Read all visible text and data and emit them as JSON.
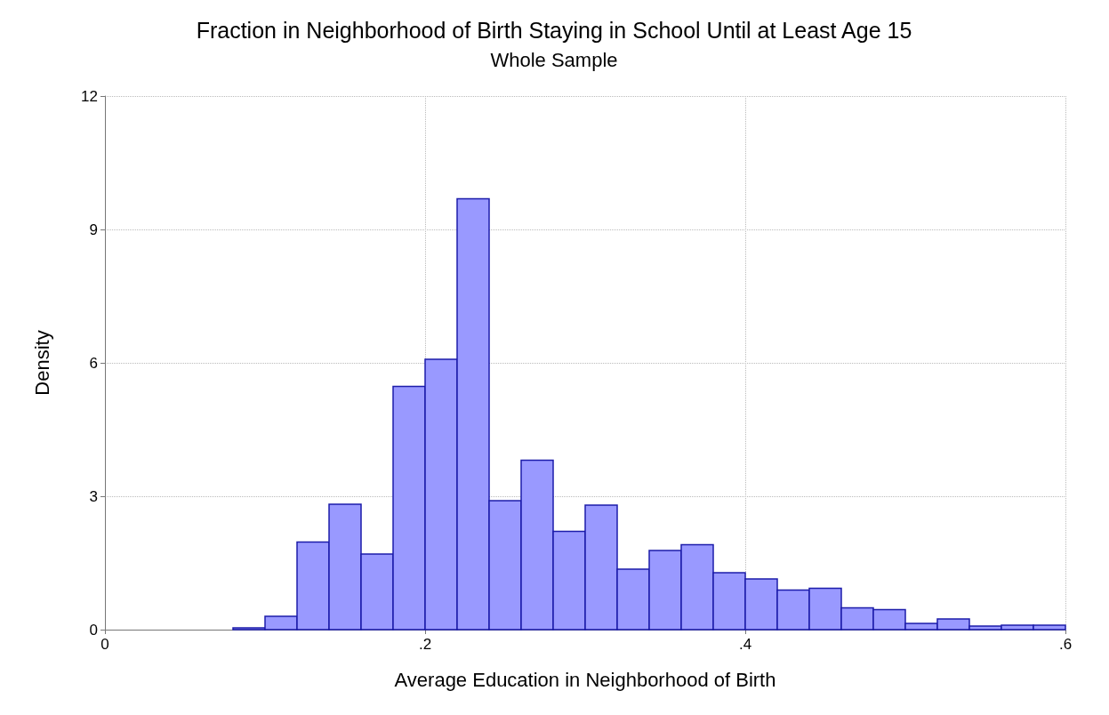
{
  "chart_data": {
    "type": "histogram",
    "title": "Fraction in Neighborhood of Birth Staying in School Until at Least Age 15",
    "subtitle": "Whole Sample",
    "xlabel": "Average Education in Neighborhood of Birth",
    "ylabel": "Density",
    "bins": [
      0.08,
      0.1,
      0.12,
      0.14,
      0.16,
      0.18,
      0.2,
      0.22,
      0.24,
      0.26,
      0.28,
      0.3,
      0.32,
      0.34,
      0.36,
      0.38,
      0.4,
      0.42,
      0.44,
      0.46,
      0.48,
      0.5,
      0.52,
      0.54,
      0.56,
      0.58,
      0.6
    ],
    "values": [
      0.04,
      0.3,
      1.97,
      2.82,
      1.7,
      5.47,
      6.08,
      9.69,
      2.9,
      3.81,
      2.21,
      2.8,
      1.36,
      1.78,
      1.91,
      1.28,
      1.14,
      0.89,
      0.93,
      0.49,
      0.45,
      0.14,
      0.24,
      0.08,
      0.1,
      0.1
    ],
    "color": "#9999ff",
    "xlim": [
      0,
      0.6
    ],
    "xticks": [
      0,
      {
        "value": 0.2,
        "label": ".2"
      },
      {
        "value": 0.4,
        "label": ".4"
      },
      {
        "value": 0.6,
        "label": ".6"
      }
    ],
    "ylim": [
      0,
      12
    ],
    "yticks": [
      0,
      3,
      6,
      9,
      12
    ],
    "grid": true
  }
}
